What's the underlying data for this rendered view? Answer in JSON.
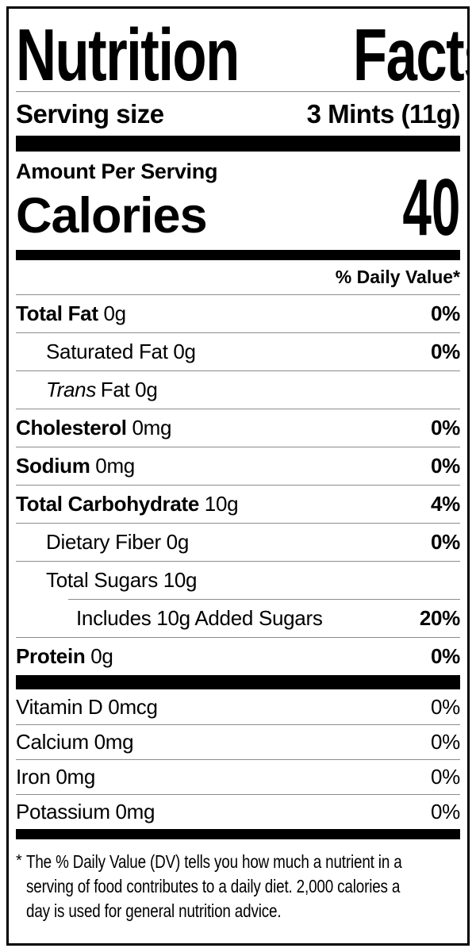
{
  "title": {
    "word1": "Nutrition",
    "word2": "Facts"
  },
  "serving": {
    "label": "Serving size",
    "value": "3 Mints (11g)"
  },
  "calories_section": {
    "heading": "Amount Per Serving",
    "label": "Calories",
    "value": "40"
  },
  "dv_header": "% Daily Value*",
  "nutrients": [
    {
      "name": "Total Fat",
      "amount": "0g",
      "dv": "0%",
      "bold": true,
      "indent": 0
    },
    {
      "name": "Saturated Fat",
      "amount": "0g",
      "dv": "0%",
      "bold": false,
      "indent": 1
    },
    {
      "name": "Fat",
      "amount": "0g",
      "dv": "",
      "bold": false,
      "indent": 1,
      "italic_prefix": "Trans"
    },
    {
      "name": "Cholesterol",
      "amount": "0mg",
      "dv": "0%",
      "bold": true,
      "indent": 0
    },
    {
      "name": "Sodium",
      "amount": "0mg",
      "dv": "0%",
      "bold": true,
      "indent": 0
    },
    {
      "name": "Total Carbohydrate",
      "amount": "10g",
      "dv": "4%",
      "bold": true,
      "indent": 0
    },
    {
      "name": "Dietary Fiber",
      "amount": "0g",
      "dv": "0%",
      "bold": false,
      "indent": 1
    },
    {
      "name": "Total Sugars",
      "amount": "10g",
      "dv": "",
      "bold": false,
      "indent": 1
    },
    {
      "name": "Includes 10g Added Sugars",
      "amount": "",
      "dv": "20%",
      "bold": false,
      "indent": 2,
      "rule_inset": true
    },
    {
      "name": "Protein",
      "amount": "0g",
      "dv": "0%",
      "bold": true,
      "indent": 0
    }
  ],
  "vitamins": [
    {
      "name": "Vitamin D",
      "amount": "0mcg",
      "dv": "0%"
    },
    {
      "name": "Calcium",
      "amount": "0mg",
      "dv": "0%"
    },
    {
      "name": "Iron",
      "amount": "0mg",
      "dv": "0%"
    },
    {
      "name": "Potassium",
      "amount": "0mg",
      "dv": "0%"
    }
  ],
  "footnote": {
    "asterisk": "*",
    "lines": [
      "The % Daily Value (DV) tells you how much a nutrient in a",
      "serving of food contributes to a daily diet. 2,000 calories a",
      "day is used for general nutrition advice."
    ]
  }
}
